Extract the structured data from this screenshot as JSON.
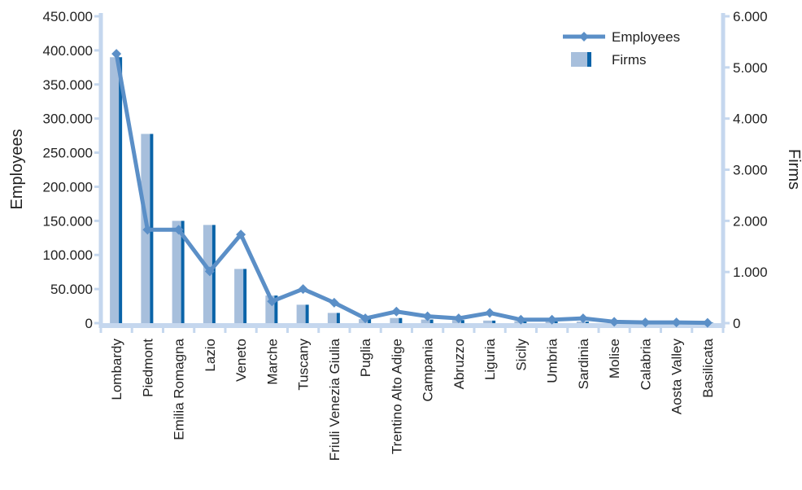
{
  "chart_data": {
    "type": "bar",
    "title": "",
    "categories": [
      "Lombardy",
      "Piedmont",
      "Emilia Romagna",
      "Lazio",
      "Veneto",
      "Marche",
      "Tuscany",
      "Friuli Venezia Giulia",
      "Puglia",
      "Trentino Alto Adige",
      "Campania",
      "Abruzzo",
      "Liguria",
      "Sicily",
      "Umbria",
      "Sardinia",
      "Molise",
      "Calabria",
      "Aosta Valley",
      "Basilicata"
    ],
    "series": [
      {
        "name": "Employees",
        "type": "line",
        "axis": "left",
        "values": [
          395000,
          137000,
          137000,
          76000,
          130000,
          32000,
          50000,
          30000,
          7000,
          17000,
          10000,
          7000,
          15000,
          5000,
          5000,
          7000,
          2000,
          1000,
          1000,
          500
        ]
      },
      {
        "name": "Firms",
        "type": "bar",
        "axis": "right",
        "values": [
          5200,
          3700,
          2000,
          1920,
          1060,
          540,
          360,
          200,
          80,
          100,
          70,
          60,
          50,
          40,
          35,
          30,
          25,
          15,
          10,
          10
        ]
      }
    ],
    "ylabel": "Employees",
    "y2label": "Firms",
    "ylim": [
      0,
      450000
    ],
    "y2lim": [
      0,
      6000
    ],
    "yticks": [
      "0",
      "50.000",
      "100.000",
      "150.000",
      "200.000",
      "250.000",
      "300.000",
      "350.000",
      "400.000",
      "450.000"
    ],
    "y2ticks": [
      "0",
      "1.000",
      "2.000",
      "3.000",
      "4.000",
      "5.000",
      "6.000"
    ],
    "legend": {
      "placement": "top-right",
      "entries": [
        "Employees",
        "Firms"
      ]
    },
    "grid": false,
    "colors": {
      "line": "#5b8fc7",
      "bar_light": "#a7bfdc",
      "bar_dark": "#0a63a8",
      "axis": "#c5d7ee"
    }
  }
}
